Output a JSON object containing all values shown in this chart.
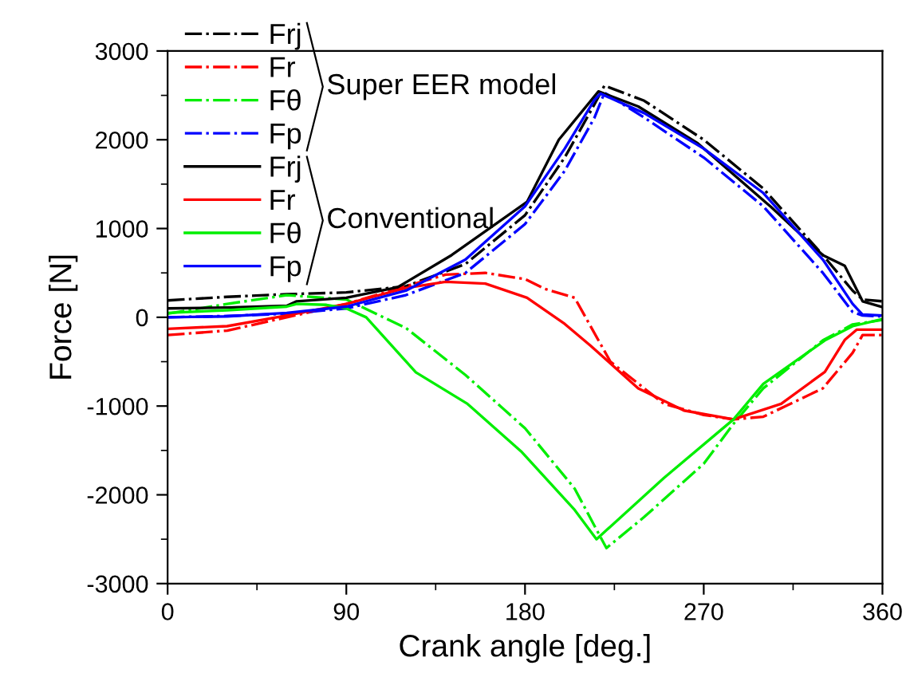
{
  "chart_data": {
    "type": "line",
    "xlabel": "Crank angle [deg.]",
    "ylabel": "Force [N]",
    "xlim": [
      0,
      360
    ],
    "xticks": [
      0,
      90,
      180,
      270,
      360
    ],
    "ylim": [
      -3000,
      3000
    ],
    "yticks": [
      -3000,
      -2000,
      -1000,
      0,
      1000,
      2000,
      3000
    ],
    "grid": false,
    "legend": "top left",
    "marker": "none",
    "annotations": [
      "Super EER model",
      "Conventional"
    ],
    "series": [
      {
        "name": "Frj",
        "color": "#000000",
        "line_style": "dashdot",
        "x": [
          0,
          30,
          60,
          90,
          120,
          150,
          180,
          200,
          215,
          220,
          240,
          270,
          300,
          330,
          345,
          350,
          360
        ],
        "values": [
          190,
          230,
          260,
          280,
          350,
          600,
          1150,
          1800,
          2400,
          2610,
          2440,
          2000,
          1450,
          700,
          300,
          200,
          180
        ]
      },
      {
        "name": "Fr",
        "color": "#ff0000",
        "line_style": "dashdot",
        "x": [
          0,
          30,
          60,
          90,
          120,
          140,
          160,
          180,
          190,
          205,
          223,
          240,
          250,
          270,
          285,
          300,
          330,
          345,
          350,
          360
        ],
        "values": [
          -200,
          -150,
          0,
          150,
          350,
          480,
          500,
          430,
          320,
          220,
          -500,
          -800,
          -975,
          -1100,
          -1150,
          -1120,
          -800,
          -400,
          -200,
          -200
        ]
      },
      {
        "name": "Fθ",
        "color": "#00ee00",
        "line_style": "dashdot",
        "x": [
          0,
          30,
          60,
          90,
          120,
          150,
          180,
          205,
          215,
          221,
          240,
          250,
          270,
          285,
          300,
          330,
          345,
          360
        ],
        "values": [
          40,
          150,
          250,
          200,
          -120,
          -650,
          -1250,
          -1930,
          -2350,
          -2600,
          -2250,
          -2050,
          -1650,
          -1200,
          -800,
          -260,
          -80,
          -30
        ]
      },
      {
        "name": "Fp",
        "color": "#0000ff",
        "line_style": "dashdot",
        "x": [
          0,
          30,
          60,
          90,
          120,
          150,
          180,
          200,
          215,
          220,
          240,
          270,
          300,
          330,
          345,
          350,
          360
        ],
        "values": [
          0,
          15,
          40,
          100,
          250,
          500,
          1050,
          1650,
          2250,
          2530,
          2250,
          1800,
          1250,
          500,
          60,
          20,
          10
        ]
      },
      {
        "name": "Frj",
        "color": "#000000",
        "line_style": "solid",
        "x": [
          0,
          30,
          60,
          65,
          90,
          116,
          143,
          181,
          197,
          217,
          237,
          267,
          304,
          330,
          341,
          350,
          360
        ],
        "values": [
          100,
          110,
          130,
          180,
          220,
          340,
          700,
          1300,
          2000,
          2545,
          2375,
          1960,
          1240,
          700,
          580,
          180,
          115
        ]
      },
      {
        "name": "Fr",
        "color": "#ff0000",
        "line_style": "solid",
        "x": [
          0,
          30,
          60,
          90,
          120,
          140,
          160,
          181,
          200,
          213,
          237,
          260,
          285,
          309,
          331,
          341,
          347,
          360
        ],
        "values": [
          -130,
          -100,
          20,
          150,
          330,
          400,
          380,
          220,
          -75,
          -320,
          -800,
          -1050,
          -1150,
          -975,
          -615,
          -255,
          -140,
          -140
        ]
      },
      {
        "name": "Fθ",
        "color": "#00ee00",
        "line_style": "solid",
        "x": [
          0,
          30,
          60,
          65,
          80,
          90,
          100,
          125,
          151,
          178,
          205,
          216,
          250,
          285,
          300,
          331,
          345,
          360
        ],
        "values": [
          50,
          80,
          120,
          150,
          140,
          100,
          0,
          -620,
          -975,
          -1510,
          -2170,
          -2500,
          -1810,
          -1150,
          -750,
          -260,
          -100,
          -20
        ]
      },
      {
        "name": "Fp",
        "color": "#0000ff",
        "line_style": "solid",
        "x": [
          0,
          30,
          60,
          90,
          120,
          150,
          180,
          200,
          215,
          218,
          240,
          270,
          300,
          330,
          345,
          350,
          360
        ],
        "values": [
          0,
          10,
          50,
          120,
          300,
          650,
          1250,
          1900,
          2450,
          2520,
          2300,
          1900,
          1400,
          650,
          150,
          30,
          20
        ]
      }
    ]
  }
}
